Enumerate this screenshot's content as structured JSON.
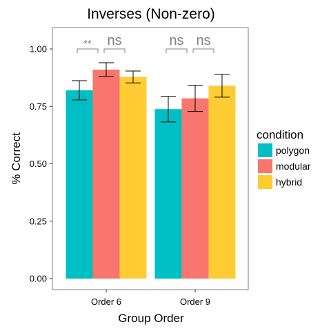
{
  "chart_data": {
    "type": "bar",
    "title": "Inverses (Non-zero)",
    "xlabel": "Group Order",
    "ylabel": "% Correct",
    "ylim": [
      0,
      1.0
    ],
    "yticks": [
      "0.00",
      "0.25",
      "0.50",
      "0.75",
      "1.00"
    ],
    "ytick_values": [
      0,
      0.25,
      0.5,
      0.75,
      1.0
    ],
    "categories": [
      "Order 6",
      "Order 9"
    ],
    "legend_title": "condition",
    "legend_position": "right",
    "grid": false,
    "series": [
      {
        "name": "polygon",
        "color": "#00BFC4",
        "values": [
          0.82,
          0.738
        ],
        "err_low": [
          0.778,
          0.682
        ],
        "err_high": [
          0.862,
          0.794
        ]
      },
      {
        "name": "modular",
        "color": "#F8766D",
        "values": [
          0.91,
          0.785
        ],
        "err_low": [
          0.88,
          0.728
        ],
        "err_high": [
          0.94,
          0.842
        ]
      },
      {
        "name": "hybrid",
        "color": "#FFCC33",
        "values": [
          0.878,
          0.84
        ],
        "err_low": [
          0.852,
          0.79
        ],
        "err_high": [
          0.904,
          0.89
        ]
      }
    ],
    "annotations": [
      {
        "text": "**",
        "category": 0,
        "from_series": 0,
        "to_series": 1
      },
      {
        "text": "ns",
        "category": 0,
        "from_series": 1,
        "to_series": 2
      },
      {
        "text": "ns",
        "category": 1,
        "from_series": 0,
        "to_series": 1
      },
      {
        "text": "ns",
        "category": 1,
        "from_series": 1,
        "to_series": 2
      }
    ]
  }
}
